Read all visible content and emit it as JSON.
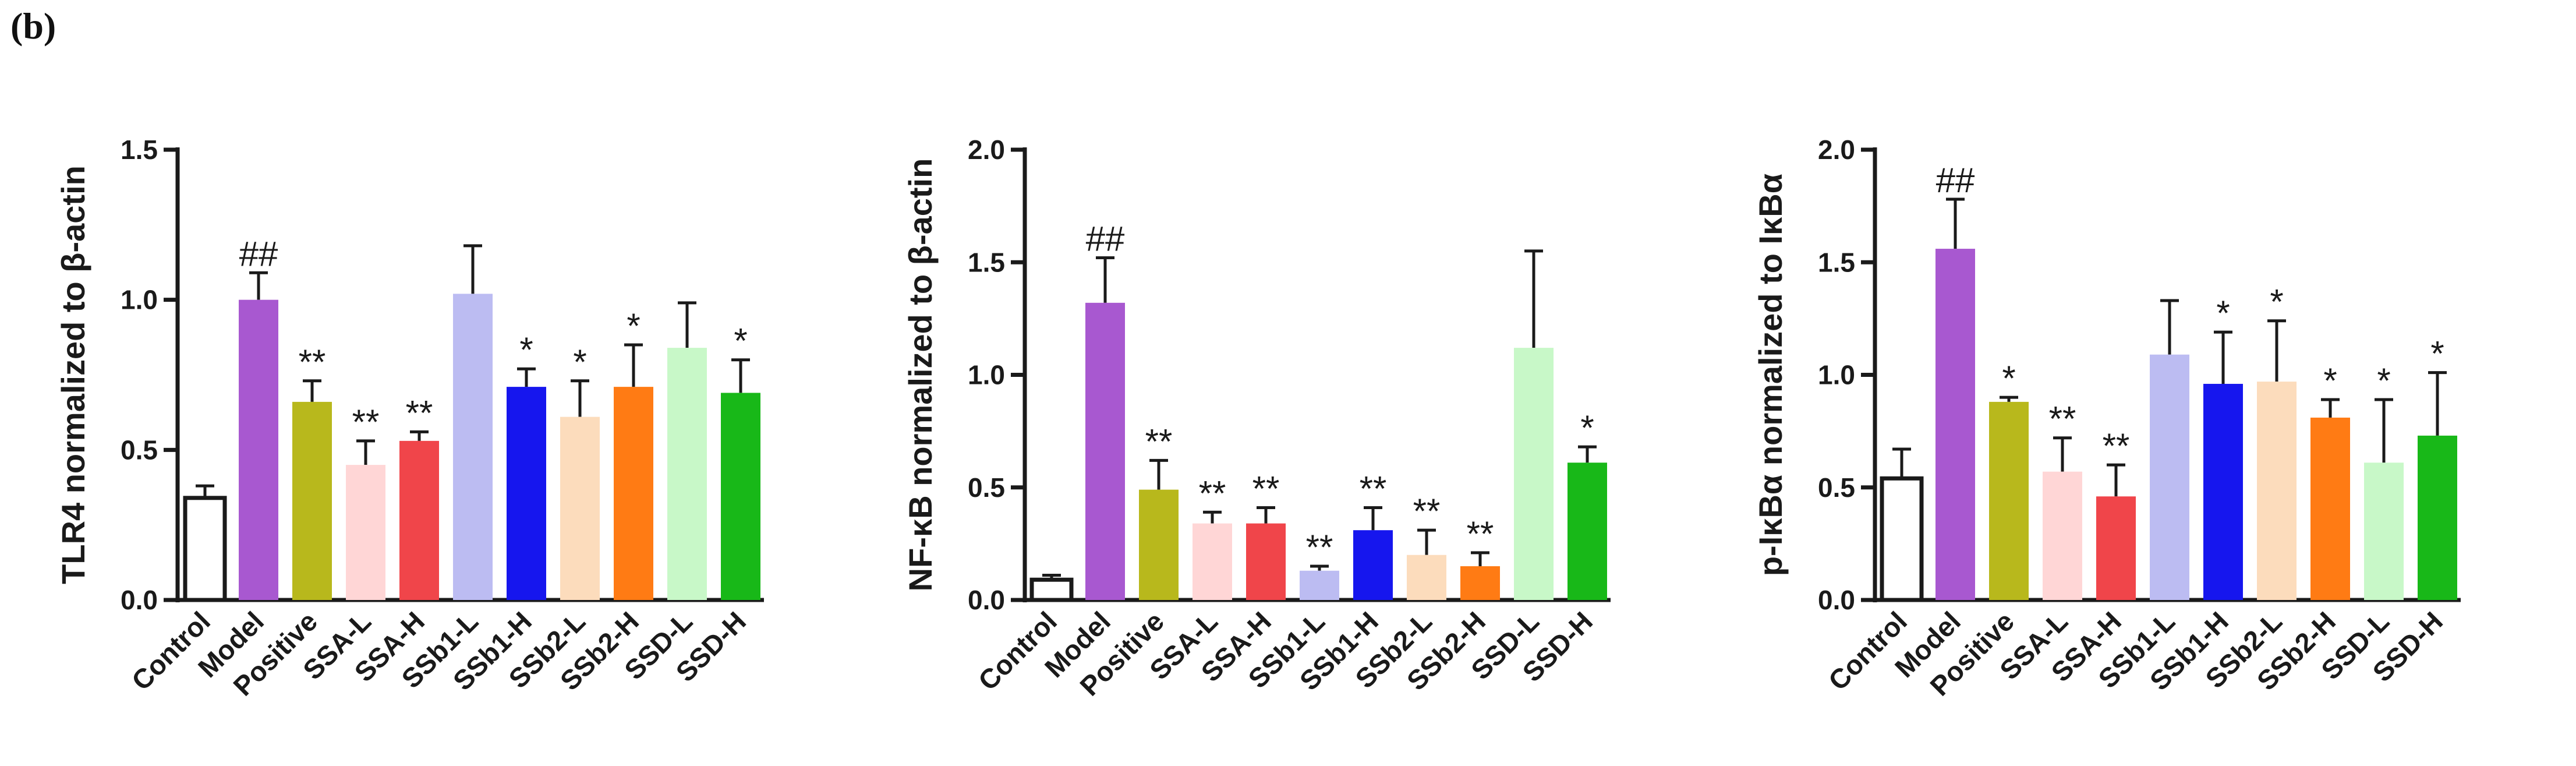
{
  "panel_label": "(b)",
  "chart_data": [
    {
      "type": "bar",
      "ylabel": "TLR4 normalized to β-actin",
      "ylim": [
        0,
        1.5
      ],
      "yticks": [
        "0.0",
        "0.5",
        "1.0",
        "1.5"
      ],
      "ytick_values": [
        0,
        0.5,
        1.0,
        1.5
      ],
      "categories": [
        "Control",
        "Model",
        "Positive",
        "SSA-L",
        "SSA-H",
        "SSb1-L",
        "SSb1-H",
        "SSb2-L",
        "SSb2-H",
        "SSD-L",
        "SSD-H"
      ],
      "values": [
        0.34,
        1.0,
        0.66,
        0.45,
        0.53,
        1.02,
        0.71,
        0.61,
        0.71,
        0.84,
        0.69
      ],
      "errors": [
        0.04,
        0.09,
        0.07,
        0.08,
        0.03,
        0.16,
        0.06,
        0.12,
        0.14,
        0.15,
        0.11
      ],
      "significance": [
        "",
        "##",
        "**",
        "**",
        "**",
        "",
        "*",
        "*",
        "*",
        "",
        "*"
      ]
    },
    {
      "type": "bar",
      "ylabel": "NF-κB normalized to β-actin",
      "ylim": [
        0,
        2.0
      ],
      "yticks": [
        "0.0",
        "0.5",
        "1.0",
        "1.5",
        "2.0"
      ],
      "ytick_values": [
        0,
        0.5,
        1.0,
        1.5,
        2.0
      ],
      "categories": [
        "Control",
        "Model",
        "Positive",
        "SSA-L",
        "SSA-H",
        "SSb1-L",
        "SSb1-H",
        "SSb2-L",
        "SSb2-H",
        "SSD-L",
        "SSD-H"
      ],
      "values": [
        0.09,
        1.32,
        0.49,
        0.34,
        0.34,
        0.13,
        0.31,
        0.2,
        0.15,
        1.12,
        0.61
      ],
      "errors": [
        0.02,
        0.2,
        0.13,
        0.05,
        0.07,
        0.02,
        0.1,
        0.11,
        0.06,
        0.43,
        0.07
      ],
      "significance": [
        "",
        "##",
        "**",
        "**",
        "**",
        "**",
        "**",
        "**",
        "**",
        "",
        "*"
      ]
    },
    {
      "type": "bar",
      "ylabel": "p-IκBα normalized to IκBα",
      "ylim": [
        0,
        2.0
      ],
      "yticks": [
        "0.0",
        "0.5",
        "1.0",
        "1.5",
        "2.0"
      ],
      "ytick_values": [
        0,
        0.5,
        1.0,
        1.5,
        2.0
      ],
      "categories": [
        "Control",
        "Model",
        "Positive",
        "SSA-L",
        "SSA-H",
        "SSb1-L",
        "SSb1-H",
        "SSb2-L",
        "SSb2-H",
        "SSD-L",
        "SSD-H"
      ],
      "values": [
        0.54,
        1.56,
        0.88,
        0.57,
        0.46,
        1.09,
        0.96,
        0.97,
        0.81,
        0.61,
        0.73
      ],
      "errors": [
        0.13,
        0.22,
        0.02,
        0.15,
        0.14,
        0.24,
        0.23,
        0.27,
        0.08,
        0.28,
        0.28
      ],
      "significance": [
        "",
        "##",
        "*",
        "**",
        "**",
        "",
        "*",
        "*",
        "*",
        "*",
        "*"
      ]
    }
  ],
  "colors": [
    "#ffffff",
    "#a858d0",
    "#b8b81c",
    "#ffd6d6",
    "#f0454a",
    "#bcbcf2",
    "#1616ee",
    "#fcdcbc",
    "#ff7b14",
    "#c8f8c8",
    "#18b818"
  ]
}
